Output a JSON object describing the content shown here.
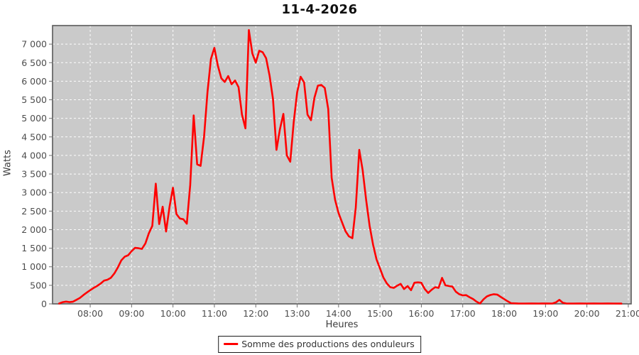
{
  "title": "11-4-2026",
  "axes": {
    "y_title": "Watts",
    "x_title": "Heures"
  },
  "legend": {
    "label": "Somme des productions des onduleurs",
    "swatch_color": "#ff0000"
  },
  "colors": {
    "background": "#ffffff",
    "plot_background": "#cacaca",
    "plot_border": "#5a5a5a",
    "gridline": "#ffffff",
    "tick_label": "#4d4d4d",
    "series_line": "#ff0000"
  },
  "chart_data": {
    "type": "line",
    "title": "11-4-2026",
    "xlabel": "Heures",
    "ylabel": "Watts",
    "grid": true,
    "legend_position": "bottom-center",
    "x_ticks": [
      "08:00",
      "09:00",
      "10:00",
      "11:00",
      "12:00",
      "13:00",
      "14:00",
      "15:00",
      "16:00",
      "17:00",
      "18:00",
      "19:00",
      "20:00",
      "21:00"
    ],
    "y_ticks": [
      0,
      500,
      1000,
      1500,
      2000,
      2500,
      3000,
      3500,
      4000,
      4500,
      5000,
      5500,
      6000,
      6500,
      7000
    ],
    "y_tick_labels": [
      "0",
      "500",
      "1 000",
      "1 500",
      "2 000",
      "2 500",
      "3 000",
      "3 500",
      "4 000",
      "4 500",
      "5 000",
      "5 500",
      "6 000",
      "6 500",
      "7 000"
    ],
    "x_range_hours": [
      7.09,
      21.07
    ],
    "ylim": [
      0,
      7500
    ],
    "series": [
      {
        "name": "Somme des productions des onduleurs",
        "color": "#ff0000",
        "points": [
          [
            "07:15",
            10
          ],
          [
            "07:20",
            45
          ],
          [
            "07:25",
            62
          ],
          [
            "07:30",
            48
          ],
          [
            "07:35",
            60
          ],
          [
            "07:40",
            110
          ],
          [
            "07:45",
            160
          ],
          [
            "07:50",
            235
          ],
          [
            "07:55",
            305
          ],
          [
            "08:00",
            370
          ],
          [
            "08:05",
            430
          ],
          [
            "08:10",
            485
          ],
          [
            "08:15",
            545
          ],
          [
            "08:20",
            625
          ],
          [
            "08:25",
            650
          ],
          [
            "08:30",
            705
          ],
          [
            "08:35",
            820
          ],
          [
            "08:40",
            980
          ],
          [
            "08:45",
            1170
          ],
          [
            "08:50",
            1270
          ],
          [
            "08:55",
            1310
          ],
          [
            "09:00",
            1420
          ],
          [
            "09:05",
            1510
          ],
          [
            "09:10",
            1500
          ],
          [
            "09:15",
            1480
          ],
          [
            "09:20",
            1630
          ],
          [
            "09:25",
            1900
          ],
          [
            "09:30",
            2100
          ],
          [
            "09:35",
            3240
          ],
          [
            "09:40",
            2150
          ],
          [
            "09:45",
            2620
          ],
          [
            "09:50",
            1950
          ],
          [
            "09:55",
            2620
          ],
          [
            "10:00",
            3130
          ],
          [
            "10:05",
            2420
          ],
          [
            "10:10",
            2300
          ],
          [
            "10:15",
            2280
          ],
          [
            "10:20",
            2160
          ],
          [
            "10:25",
            3200
          ],
          [
            "10:30",
            5080
          ],
          [
            "10:35",
            3760
          ],
          [
            "10:40",
            3720
          ],
          [
            "10:45",
            4500
          ],
          [
            "10:50",
            5700
          ],
          [
            "10:55",
            6600
          ],
          [
            "11:00",
            6900
          ],
          [
            "11:05",
            6420
          ],
          [
            "11:10",
            6080
          ],
          [
            "11:15",
            5980
          ],
          [
            "11:20",
            6140
          ],
          [
            "11:25",
            5920
          ],
          [
            "11:30",
            6020
          ],
          [
            "11:35",
            5840
          ],
          [
            "11:40",
            5100
          ],
          [
            "11:45",
            4730
          ],
          [
            "11:50",
            7380
          ],
          [
            "11:55",
            6750
          ],
          [
            "12:00",
            6500
          ],
          [
            "12:05",
            6820
          ],
          [
            "12:10",
            6780
          ],
          [
            "12:15",
            6620
          ],
          [
            "12:20",
            6150
          ],
          [
            "12:25",
            5520
          ],
          [
            "12:30",
            4150
          ],
          [
            "12:35",
            4700
          ],
          [
            "12:40",
            5120
          ],
          [
            "12:45",
            4000
          ],
          [
            "12:50",
            3830
          ],
          [
            "12:55",
            4900
          ],
          [
            "13:00",
            5700
          ],
          [
            "13:05",
            6120
          ],
          [
            "13:10",
            5970
          ],
          [
            "13:15",
            5100
          ],
          [
            "13:20",
            4950
          ],
          [
            "13:25",
            5550
          ],
          [
            "13:30",
            5880
          ],
          [
            "13:35",
            5900
          ],
          [
            "13:40",
            5820
          ],
          [
            "13:45",
            5250
          ],
          [
            "13:50",
            3400
          ],
          [
            "13:55",
            2800
          ],
          [
            "14:00",
            2450
          ],
          [
            "14:05",
            2200
          ],
          [
            "14:10",
            1960
          ],
          [
            "14:15",
            1820
          ],
          [
            "14:20",
            1770
          ],
          [
            "14:25",
            2600
          ],
          [
            "14:30",
            4150
          ],
          [
            "14:35",
            3600
          ],
          [
            "14:40",
            2800
          ],
          [
            "14:45",
            2100
          ],
          [
            "14:50",
            1600
          ],
          [
            "14:55",
            1200
          ],
          [
            "15:00",
            960
          ],
          [
            "15:05",
            710
          ],
          [
            "15:10",
            550
          ],
          [
            "15:15",
            450
          ],
          [
            "15:20",
            430
          ],
          [
            "15:25",
            490
          ],
          [
            "15:30",
            540
          ],
          [
            "15:35",
            400
          ],
          [
            "15:40",
            480
          ],
          [
            "15:45",
            370
          ],
          [
            "15:50",
            570
          ],
          [
            "15:55",
            580
          ],
          [
            "16:00",
            570
          ],
          [
            "16:05",
            400
          ],
          [
            "16:10",
            295
          ],
          [
            "16:15",
            380
          ],
          [
            "16:20",
            450
          ],
          [
            "16:25",
            430
          ],
          [
            "16:30",
            700
          ],
          [
            "16:35",
            500
          ],
          [
            "16:40",
            480
          ],
          [
            "16:45",
            465
          ],
          [
            "16:50",
            330
          ],
          [
            "16:55",
            260
          ],
          [
            "17:00",
            230
          ],
          [
            "17:05",
            235
          ],
          [
            "17:10",
            180
          ],
          [
            "17:15",
            130
          ],
          [
            "17:20",
            60
          ],
          [
            "17:25",
            10
          ],
          [
            "17:30",
            120
          ],
          [
            "17:35",
            200
          ],
          [
            "17:40",
            240
          ],
          [
            "17:45",
            260
          ],
          [
            "17:50",
            250
          ],
          [
            "17:55",
            190
          ],
          [
            "18:00",
            130
          ],
          [
            "18:05",
            70
          ],
          [
            "18:10",
            20
          ],
          [
            "18:20",
            12
          ],
          [
            "18:30",
            10
          ],
          [
            "18:40",
            12
          ],
          [
            "18:50",
            10
          ],
          [
            "19:00",
            12
          ],
          [
            "19:10",
            10
          ],
          [
            "19:15",
            40
          ],
          [
            "19:20",
            110
          ],
          [
            "19:25",
            30
          ],
          [
            "19:30",
            12
          ],
          [
            "19:40",
            10
          ],
          [
            "19:50",
            12
          ],
          [
            "20:00",
            10
          ],
          [
            "20:10",
            12
          ],
          [
            "20:20",
            10
          ],
          [
            "20:30",
            12
          ],
          [
            "20:40",
            10
          ],
          [
            "20:50",
            8
          ]
        ]
      }
    ]
  }
}
